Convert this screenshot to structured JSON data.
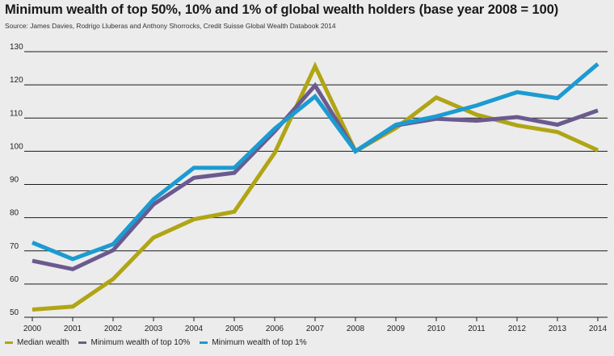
{
  "title": "Minimum wealth of top 50%, 10% and 1% of global wealth holders (base year 2008 = 100)",
  "source": "Source: James Davies, Rodrigo Lluberas and Anthony Shorrocks, Credit Suisse Global Wealth Databook 2014",
  "chart_data": {
    "type": "line",
    "title": "Minimum wealth of top 50%, 10% and 1% of global wealth holders (base year 2008 = 100)",
    "xlabel": "",
    "ylabel": "",
    "x": [
      2000,
      2001,
      2002,
      2003,
      2004,
      2005,
      2006,
      2007,
      2008,
      2009,
      2010,
      2011,
      2012,
      2013,
      2014
    ],
    "ylim": [
      50,
      130
    ],
    "yticks": [
      50,
      60,
      70,
      80,
      90,
      100,
      110,
      120,
      130
    ],
    "grid": true,
    "legend_position": "bottom",
    "series": [
      {
        "name": "Median wealth",
        "color": "#b0a514",
        "values": [
          52.3,
          53.2,
          61.5,
          74.0,
          79.5,
          81.8,
          99.5,
          125.6,
          100.0,
          107.0,
          116.2,
          111.0,
          107.8,
          105.8,
          100.3
        ]
      },
      {
        "name": "Minimum wealth of top 10%",
        "color": "#6b5a8e",
        "values": [
          67.0,
          64.5,
          70.2,
          84.0,
          92.0,
          93.5,
          106.0,
          119.8,
          100.0,
          107.8,
          109.8,
          109.2,
          110.3,
          108.0,
          112.3
        ]
      },
      {
        "name": "Minimum wealth of top 1%",
        "color": "#1b9bd1",
        "values": [
          72.5,
          67.5,
          72.0,
          85.5,
          95.0,
          95.0,
          106.8,
          116.5,
          100.0,
          108.0,
          110.5,
          113.8,
          117.8,
          116.0,
          126.3
        ]
      }
    ]
  }
}
